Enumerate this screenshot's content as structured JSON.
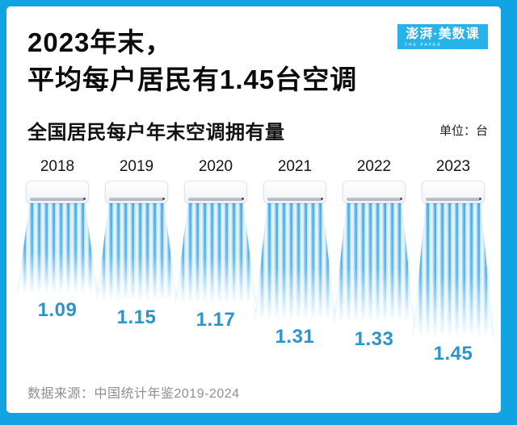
{
  "header": {
    "title_line1": "2023年末，",
    "title_line2": "平均每户居民有1.45台空调",
    "logo_text": "澎湃·美数课",
    "logo_subtext": "THE PAPER"
  },
  "chart": {
    "subtitle": "全国居民每户年末空调拥有量",
    "unit_label": "单位：台"
  },
  "chart_data": {
    "type": "bar",
    "variant": "pictogram-air-conditioner-wind-streams",
    "title": "全国居民每户年末空调拥有量",
    "unit": "台",
    "categories": [
      "2018",
      "2019",
      "2020",
      "2021",
      "2022",
      "2023"
    ],
    "values": [
      1.09,
      1.15,
      1.17,
      1.31,
      1.33,
      1.45
    ],
    "orientation": "vertical",
    "legend": "none",
    "grid": "off",
    "value_labels": "below each pictogram, blue bold"
  },
  "footer": {
    "source": "数据来源：中国统计年鉴2019-2024"
  },
  "colors": {
    "frame": "#12a3e2",
    "logo_bg": "#27b2e8",
    "value_label": "#2a95cc",
    "wind_dark": "#4faee8",
    "wind_light": "#e4f4fd",
    "title_text": "#0b0b0b",
    "source_text": "#8f8f8f"
  }
}
